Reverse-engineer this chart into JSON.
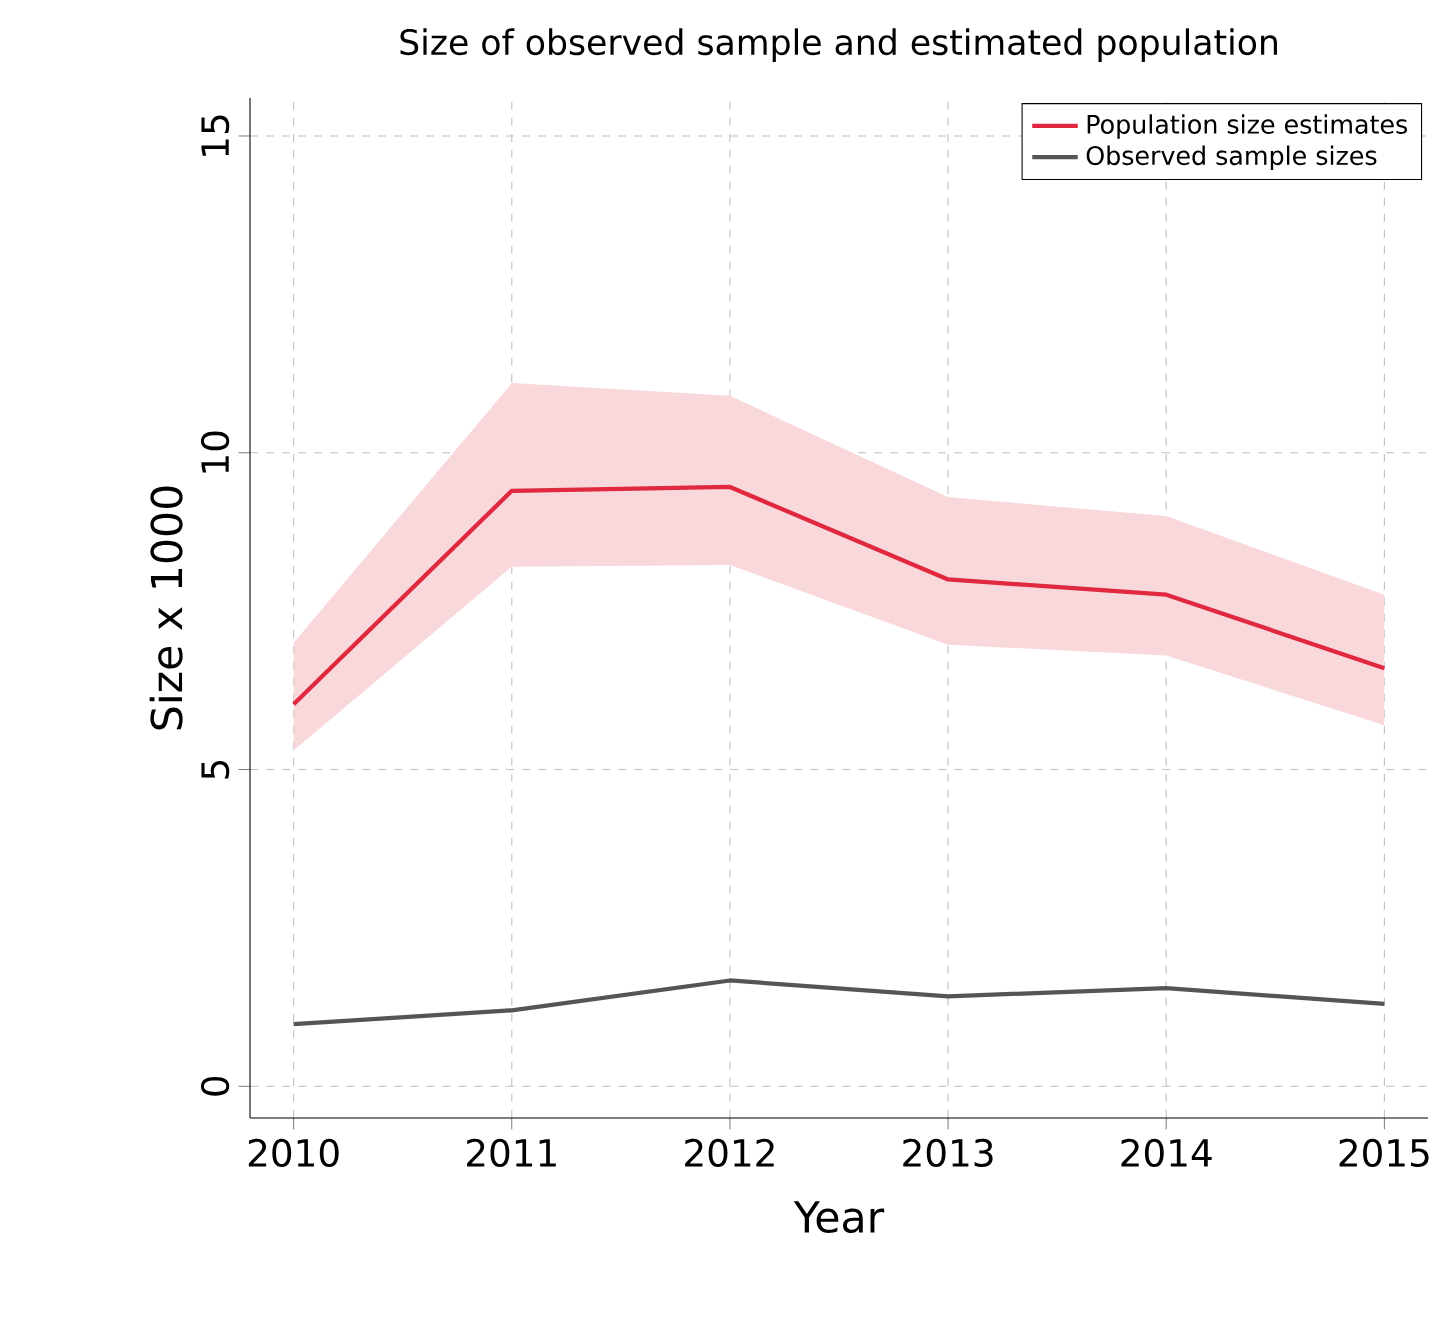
{
  "chart_data": {
    "type": "line",
    "title": "Size of observed sample and estimated population",
    "xlabel": "Year",
    "ylabel": "Size x 1000",
    "x": [
      2010,
      2011,
      2012,
      2013,
      2014,
      2015
    ],
    "series": [
      {
        "name": "Population size estimates",
        "color": "#e0283f",
        "values": [
          6.03,
          9.4,
          9.46,
          8.0,
          7.76,
          6.6
        ],
        "lower": [
          5.3,
          8.2,
          8.23,
          6.97,
          6.8,
          5.7
        ],
        "upper": [
          7.0,
          11.1,
          10.9,
          9.3,
          9.0,
          7.76
        ]
      },
      {
        "name": "Observed sample sizes",
        "color": "#555555",
        "values": [
          0.98,
          1.2,
          1.67,
          1.42,
          1.55,
          1.3
        ]
      }
    ],
    "xlim": [
      2009.8,
      2015.2
    ],
    "ylim": [
      -0.5,
      15.6
    ],
    "xticks": [
      2010,
      2011,
      2012,
      2013,
      2014,
      2015
    ],
    "yticks": [
      0,
      5,
      10,
      15
    ],
    "grid": true,
    "legend": "top right",
    "marker": "none",
    "line_style": "solid"
  }
}
